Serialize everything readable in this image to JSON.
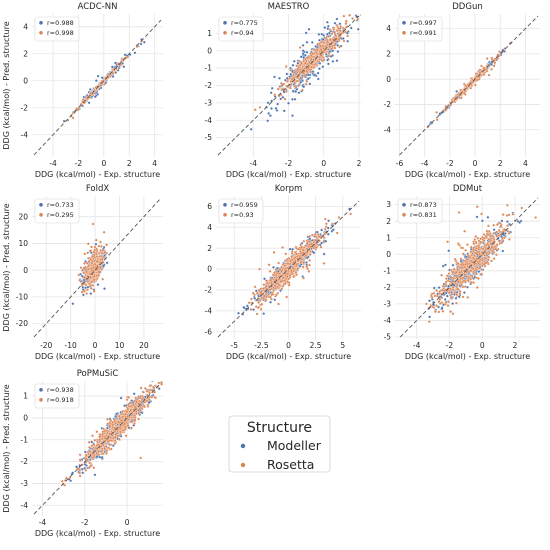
{
  "figure": {
    "legend": {
      "title": "Structure",
      "entries": [
        {
          "label": "Modeller",
          "color": "#4c72b0"
        },
        {
          "label": "Rosetta",
          "color": "#dd8452"
        }
      ]
    }
  },
  "colors": {
    "modeller": "#4c72b0",
    "rosetta": "#dd8452",
    "panel_bg": "#ffffff",
    "grid": "#e5e5e5",
    "identity_line": "#555555"
  },
  "chart_data": [
    {
      "type": "scatter",
      "title": "ACDC-NN",
      "xlabel": "DDG (kcal/mol) - Exp. structure",
      "ylabel": "DDG (kcal/mol) - Pred. structure",
      "xlim": [
        -5.5,
        4.5
      ],
      "ylim": [
        -5.5,
        4.8
      ],
      "xticks": [
        -4,
        -2,
        0,
        2,
        4
      ],
      "yticks": [
        -4,
        -2,
        0,
        2,
        4
      ],
      "legend_entries": [
        "r=0.988",
        "r=0.998"
      ],
      "grid": true,
      "legend_position": "top-left",
      "series": [
        {
          "name": "Modeller",
          "r": 0.988,
          "center": [
            -0.1,
            -0.1
          ],
          "sd": 1.2,
          "noise": 0.18,
          "n": 140
        },
        {
          "name": "Rosetta",
          "r": 0.998,
          "center": [
            -0.1,
            -0.1
          ],
          "sd": 1.2,
          "noise": 0.07,
          "n": 140
        }
      ]
    },
    {
      "type": "scatter",
      "title": "MAESTRO",
      "xlabel": "DDG (kcal/mol) - Exp. structure",
      "ylabel": "",
      "xlim": [
        -6.0,
        2.0
      ],
      "ylim": [
        -6.0,
        2.0
      ],
      "xticks": [
        -4,
        -2,
        0,
        2
      ],
      "yticks": [
        -5,
        -4,
        -3,
        -2,
        -1,
        0,
        1
      ],
      "legend_entries": [
        "r=0.775",
        "r=0.94"
      ],
      "grid": true,
      "legend_position": "top-left",
      "series": [
        {
          "name": "Modeller",
          "r": 0.775,
          "center": [
            -0.6,
            -0.5
          ],
          "sd": 0.95,
          "noise": 0.55,
          "n": 420
        },
        {
          "name": "Rosetta",
          "r": 0.94,
          "center": [
            -0.6,
            -0.5
          ],
          "sd": 0.95,
          "noise": 0.28,
          "n": 420
        }
      ]
    },
    {
      "type": "scatter",
      "title": "DDGun",
      "xlabel": "DDG (kcal/mol) - Exp. structure",
      "ylabel": "",
      "xlim": [
        -6.2,
        5.0
      ],
      "ylim": [
        -6.0,
        5.0
      ],
      "xticks": [
        -6,
        -4,
        -2,
        0,
        2,
        4
      ],
      "yticks": [
        -4,
        -2,
        0,
        2,
        4
      ],
      "legend_entries": [
        "r=0.997",
        "r=0.991"
      ],
      "grid": true,
      "legend_position": "top-left",
      "series": [
        {
          "name": "Modeller",
          "r": 0.997,
          "center": [
            -0.3,
            -0.3
          ],
          "sd": 1.1,
          "noise": 0.08,
          "n": 260
        },
        {
          "name": "Rosetta",
          "r": 0.991,
          "center": [
            -0.3,
            -0.3
          ],
          "sd": 1.1,
          "noise": 0.14,
          "n": 260
        }
      ]
    },
    {
      "type": "scatter",
      "title": "FoldX",
      "xlabel": "DDG (kcal/mol) - Exp. structure",
      "ylabel": "DDG (kcal/mol) - Pred. structure",
      "xlim": [
        -25,
        27
      ],
      "ylim": [
        -25,
        27
      ],
      "xticks": [
        -20,
        -10,
        0,
        10,
        20
      ],
      "yticks": [
        -20,
        -10,
        0,
        10,
        20
      ],
      "legend_entries": [
        "r=0.733",
        "r=0.295"
      ],
      "grid": true,
      "legend_position": "top-left",
      "series": [
        {
          "name": "Modeller",
          "r": 0.733,
          "center": [
            -0.5,
            0.2
          ],
          "sd": 2.2,
          "noise": 2.2,
          "n": 320
        },
        {
          "name": "Rosetta",
          "r": 0.295,
          "center": [
            -0.5,
            0.8
          ],
          "sd": 2.0,
          "noise": 3.0,
          "n": 320
        }
      ]
    },
    {
      "type": "scatter",
      "title": "Korpm",
      "xlabel": "DDG (kcal/mol) - Exp. structure",
      "ylabel": "",
      "xlim": [
        -6.5,
        6.5
      ],
      "ylim": [
        -6.5,
        6.8
      ],
      "xticks": [
        -5.0,
        -2.5,
        0.0,
        2.5,
        5.0
      ],
      "yticks": [
        -6,
        -4,
        -2,
        0,
        2,
        4,
        6
      ],
      "legend_entries": [
        "r=0.959",
        "r=0.93"
      ],
      "grid": true,
      "legend_position": "top-left",
      "series": [
        {
          "name": "Modeller",
          "r": 0.959,
          "center": [
            0.0,
            0.0
          ],
          "sd": 1.6,
          "noise": 0.45,
          "n": 520
        },
        {
          "name": "Rosetta",
          "r": 0.93,
          "center": [
            0.0,
            0.0
          ],
          "sd": 1.6,
          "noise": 0.6,
          "n": 520
        }
      ]
    },
    {
      "type": "scatter",
      "title": "DDMut",
      "xlabel": "DDG (kcal/mol) - Exp. structure",
      "ylabel": "",
      "xlim": [
        -5.2,
        3.4
      ],
      "ylim": [
        -5.0,
        3.4
      ],
      "xticks": [
        -4,
        -2,
        0,
        2
      ],
      "yticks": [
        -5,
        -4,
        -3,
        -2,
        -1,
        0,
        1,
        2,
        3
      ],
      "legend_entries": [
        "r=0.873",
        "r=0.831"
      ],
      "grid": true,
      "legend_position": "top-left",
      "series": [
        {
          "name": "Modeller",
          "r": 0.873,
          "center": [
            -0.6,
            -0.6
          ],
          "sd": 1.0,
          "noise": 0.45,
          "n": 520
        },
        {
          "name": "Rosetta",
          "r": 0.831,
          "center": [
            -0.6,
            -0.5
          ],
          "sd": 1.0,
          "noise": 0.55,
          "n": 520
        }
      ]
    },
    {
      "type": "scatter",
      "title": "PoPMuSiC",
      "xlabel": "DDG (kcal/mol) - Exp. structure",
      "ylabel": "DDG (kcal/mol) - Pred. structure",
      "xlim": [
        -4.4,
        1.6
      ],
      "ylim": [
        -4.4,
        1.6
      ],
      "xticks": [
        -4,
        -2,
        0
      ],
      "yticks": [
        -4,
        -3,
        -2,
        -1,
        0,
        1
      ],
      "legend_entries": [
        "r=0.938",
        "r=0.918"
      ],
      "grid": true,
      "legend_position": "top-left",
      "series": [
        {
          "name": "Modeller",
          "r": 0.938,
          "center": [
            -0.5,
            -0.5
          ],
          "sd": 0.8,
          "noise": 0.24,
          "n": 520
        },
        {
          "name": "Rosetta",
          "r": 0.918,
          "center": [
            -0.5,
            -0.5
          ],
          "sd": 0.8,
          "noise": 0.28,
          "n": 520
        }
      ]
    }
  ]
}
